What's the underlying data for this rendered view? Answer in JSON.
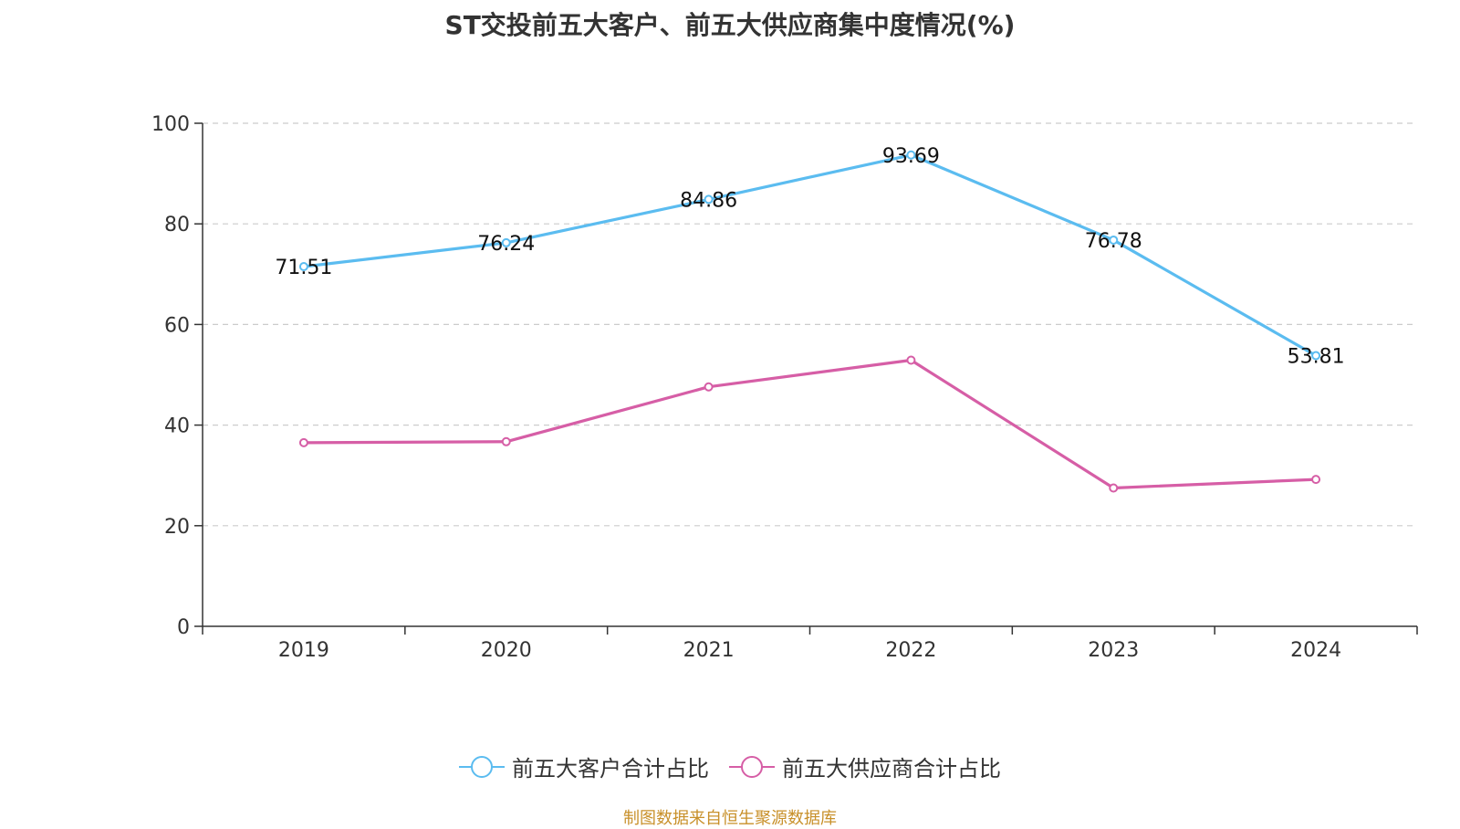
{
  "title": "ST交投前五大客户、前五大供应商集中度情况(%)",
  "source": "制图数据来自恒生聚源数据库",
  "colors": {
    "customers": "#5bbcf0",
    "suppliers": "#d65ea6",
    "axis": "#333333",
    "grid": "#cccccc"
  },
  "chart_data": {
    "type": "line",
    "title": "ST交投前五大客户、前五大供应商集中度情况(%)",
    "categories": [
      "2019",
      "2020",
      "2021",
      "2022",
      "2023",
      "2024"
    ],
    "ylim": [
      0,
      100
    ],
    "yticks": [
      0,
      20,
      40,
      60,
      80,
      100
    ],
    "grid": true,
    "legend": "bottom-center",
    "series": [
      {
        "name": "前五大客户合计占比",
        "values": [
          71.51,
          76.24,
          84.86,
          93.69,
          76.78,
          53.81
        ],
        "labels": [
          "71.51",
          "76.24",
          "84.86",
          "93.69",
          "76.78",
          "53.81"
        ]
      },
      {
        "name": "前五大供应商合计占比",
        "values": [
          36.5,
          36.7,
          47.6,
          52.9,
          27.5,
          29.2
        ],
        "labels": []
      }
    ]
  }
}
